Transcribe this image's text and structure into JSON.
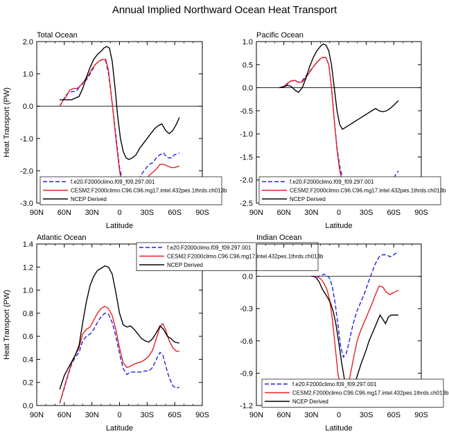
{
  "title": "Annual Implied Northward Ocean Heat Transport",
  "colors": {
    "model1": "#1f1fe6",
    "model2": "#e62020",
    "obs": "#000000"
  },
  "legend_labels": [
    "f.e20.F2000climo.f09_f09.297.001",
    "CESM2.F2000climo.C96.C96.mg17.intel.432pes.1thrds.ch013b",
    "NCEP Derived"
  ],
  "chart_data": [
    {
      "type": "line",
      "title": "Total Ocean",
      "xlabel": "Latitude",
      "ylabel": "Heat Transport (PW)",
      "xlim": [
        90,
        -90
      ],
      "ylim": [
        -3.0,
        2.0
      ],
      "xticks": [
        90,
        60,
        30,
        0,
        -30,
        -60,
        -90
      ],
      "xticklabels": [
        "90N",
        "60N",
        "30N",
        "0",
        "30S",
        "60S",
        "90S"
      ],
      "yticks": [
        -3.0,
        -2.0,
        -1.0,
        0.0,
        1.0,
        2.0
      ],
      "yticklabels": [
        "-3.0",
        "-2.0",
        "-1.0",
        "0.0",
        "1.0",
        "2.0"
      ],
      "zero_line": true,
      "legend_position": "bottom",
      "series": [
        {
          "name": "f.e20.F2000climo.f09_f09.297.001",
          "style": "dashed",
          "color": "model1",
          "x": [
            65,
            62,
            58,
            54,
            50,
            46,
            42,
            38,
            34,
            30,
            26,
            22,
            18,
            15,
            12,
            8,
            4,
            0,
            -4,
            -8,
            -12,
            -16,
            -20,
            -24,
            -28,
            -32,
            -36,
            -40,
            -44,
            -48,
            -52,
            -56,
            -60,
            -65
          ],
          "y": [
            0.0,
            0.15,
            0.35,
            0.45,
            0.45,
            0.5,
            0.65,
            0.75,
            0.9,
            1.1,
            1.3,
            1.4,
            1.45,
            1.4,
            1.0,
            0.1,
            -0.9,
            -1.9,
            -2.4,
            -2.6,
            -2.6,
            -2.5,
            -2.3,
            -2.1,
            -1.95,
            -1.8,
            -1.75,
            -1.6,
            -1.5,
            -1.45,
            -1.6,
            -1.6,
            -1.5,
            -1.45
          ]
        },
        {
          "name": "CESM2.F2000climo.C96.C96.mg17.intel.432pes.1thrds.ch013b",
          "style": "solid",
          "color": "model2",
          "x": [
            65,
            62,
            58,
            54,
            50,
            46,
            42,
            38,
            34,
            30,
            26,
            22,
            18,
            15,
            12,
            8,
            4,
            0,
            -4,
            -8,
            -12,
            -16,
            -20,
            -24,
            -28,
            -32,
            -36,
            -40,
            -44,
            -48,
            -52,
            -56,
            -60,
            -65
          ],
          "y": [
            0.0,
            0.15,
            0.3,
            0.5,
            0.55,
            0.55,
            0.65,
            0.8,
            0.95,
            1.15,
            1.3,
            1.4,
            1.45,
            1.45,
            1.1,
            0.1,
            -1.0,
            -2.0,
            -2.6,
            -2.9,
            -3.0,
            -2.9,
            -2.7,
            -2.5,
            -2.3,
            -2.15,
            -2.05,
            -1.95,
            -1.8,
            -1.8,
            -1.85,
            -1.9,
            -1.9,
            -1.85
          ]
        },
        {
          "name": "NCEP Derived",
          "style": "solid",
          "color": "obs",
          "x": [
            65,
            60,
            56,
            52,
            48,
            44,
            40,
            36,
            32,
            28,
            24,
            20,
            17,
            14,
            11,
            8,
            5,
            2,
            -1,
            -4,
            -7,
            -10,
            -14,
            -18,
            -22,
            -26,
            -30,
            -34,
            -38,
            -42,
            -46,
            -50,
            -54,
            -58,
            -62,
            -65
          ],
          "y": [
            0.2,
            0.2,
            0.2,
            0.2,
            0.25,
            0.3,
            0.55,
            0.9,
            1.2,
            1.45,
            1.6,
            1.7,
            1.8,
            1.85,
            1.8,
            1.4,
            0.6,
            -0.3,
            -1.0,
            -1.4,
            -1.6,
            -1.65,
            -1.6,
            -1.5,
            -1.3,
            -1.15,
            -1.0,
            -0.85,
            -0.7,
            -0.6,
            -0.55,
            -0.75,
            -0.85,
            -0.75,
            -0.55,
            -0.35
          ]
        }
      ]
    },
    {
      "type": "line",
      "title": "Pacific Ocean",
      "xlabel": "Latitude",
      "ylabel": "",
      "xlim": [
        90,
        -90
      ],
      "ylim": [
        -2.5,
        1.0
      ],
      "xticks": [
        90,
        60,
        30,
        0,
        -30,
        -60,
        -90
      ],
      "xticklabels": [
        "90N",
        "60N",
        "30N",
        "0",
        "30S",
        "60S",
        "90S"
      ],
      "yticks": [
        -2.5,
        -2.0,
        -1.5,
        -1.0,
        -0.5,
        0.0,
        0.5,
        1.0
      ],
      "yticklabels": [
        "-2.5",
        "-2.0",
        "-1.5",
        "-1.0",
        "-0.5",
        "0.0",
        "0.5",
        "1.0"
      ],
      "zero_line": true,
      "legend_position": "bottom",
      "series": [
        {
          "name": "f.e20.F2000climo.f09_f09.297.001",
          "style": "dashed",
          "color": "model1",
          "x": [
            65,
            60,
            56,
            52,
            48,
            44,
            40,
            36,
            32,
            28,
            24,
            20,
            17,
            14,
            11,
            8,
            5,
            2,
            -1,
            -4,
            -8,
            -12,
            -16,
            -20,
            -24,
            -28,
            -32,
            -36,
            -40,
            -44,
            -48,
            -52,
            -56,
            -60,
            -65
          ],
          "y": [
            0.0,
            0.02,
            0.08,
            0.15,
            0.15,
            0.12,
            0.15,
            0.25,
            0.35,
            0.45,
            0.55,
            0.63,
            0.66,
            0.65,
            0.5,
            0.0,
            -0.7,
            -1.3,
            -1.7,
            -1.95,
            -2.05,
            -2.1,
            -2.1,
            -2.05,
            -2.0,
            -2.05,
            -2.1,
            -2.05,
            -2.0,
            -2.05,
            -2.1,
            -2.05,
            -2.0,
            -1.95,
            -1.8
          ]
        },
        {
          "name": "CESM2.F2000climo.C96.C96.mg17.intel.432pes.1thrds.ch013b",
          "style": "solid",
          "color": "model2",
          "x": [
            65,
            60,
            56,
            52,
            48,
            44,
            40,
            36,
            32,
            28,
            24,
            20,
            17,
            14,
            11,
            8,
            5,
            2,
            -1,
            -4,
            -8,
            -12,
            -16,
            -20,
            -24,
            -28,
            -32,
            -36,
            -40,
            -44,
            -48,
            -52,
            -56,
            -60,
            -65
          ],
          "y": [
            0.0,
            0.03,
            0.1,
            0.15,
            0.16,
            0.12,
            0.12,
            0.22,
            0.33,
            0.45,
            0.55,
            0.63,
            0.66,
            0.65,
            0.5,
            0.0,
            -0.7,
            -1.35,
            -1.8,
            -2.05,
            -2.2,
            -2.25,
            -2.25,
            -2.2,
            -2.2,
            -2.25,
            -2.3,
            -2.35,
            -2.35,
            -2.4,
            -2.42,
            -2.35,
            -2.3,
            -2.25,
            -2.2
          ]
        },
        {
          "name": "NCEP Derived",
          "style": "solid",
          "color": "obs",
          "x": [
            65,
            60,
            56,
            52,
            48,
            44,
            40,
            36,
            32,
            28,
            24,
            20,
            17,
            14,
            11,
            8,
            5,
            2,
            -1,
            -4,
            -8,
            -12,
            -16,
            -20,
            -24,
            -28,
            -32,
            -36,
            -40,
            -44,
            -48,
            -52,
            -56,
            -60,
            -65
          ],
          "y": [
            0.0,
            0.02,
            0.05,
            0.03,
            -0.05,
            -0.1,
            0.0,
            0.2,
            0.45,
            0.65,
            0.8,
            0.9,
            0.95,
            0.92,
            0.8,
            0.5,
            0.0,
            -0.5,
            -0.8,
            -0.9,
            -0.85,
            -0.8,
            -0.75,
            -0.7,
            -0.65,
            -0.6,
            -0.55,
            -0.5,
            -0.45,
            -0.5,
            -0.52,
            -0.5,
            -0.45,
            -0.38,
            -0.28
          ]
        }
      ]
    },
    {
      "type": "line",
      "title": "Atlantic Ocean",
      "xlabel": "Latitude",
      "ylabel": "Heat Transport (PW)",
      "xlim": [
        90,
        -90
      ],
      "ylim": [
        0.0,
        1.4
      ],
      "xticks": [
        90,
        60,
        30,
        0,
        -30,
        -60,
        -90
      ],
      "xticklabels": [
        "90N",
        "60N",
        "30N",
        "0",
        "30S",
        "60S",
        "90S"
      ],
      "yticks": [
        0.0,
        0.2,
        0.4,
        0.6,
        0.8,
        1.0,
        1.2,
        1.4
      ],
      "yticklabels": [
        "0.0",
        "0.2",
        "0.4",
        "0.6",
        "0.8",
        "1.0",
        "1.2",
        "1.4"
      ],
      "zero_line": false,
      "legend_position": "top-right",
      "series": [
        {
          "name": "f.e20.F2000climo.f09_f09.297.001",
          "style": "dashed",
          "color": "model1",
          "x": [
            65,
            60,
            56,
            52,
            48,
            44,
            40,
            36,
            32,
            28,
            24,
            20,
            16,
            12,
            8,
            4,
            0,
            -4,
            -8,
            -12,
            -16,
            -20,
            -24,
            -28,
            -32,
            -36,
            -40,
            -44,
            -47,
            -50,
            -54,
            -58,
            -62,
            -65
          ],
          "y": [
            0.02,
            0.15,
            0.26,
            0.36,
            0.42,
            0.46,
            0.56,
            0.6,
            0.62,
            0.66,
            0.72,
            0.77,
            0.8,
            0.79,
            0.72,
            0.6,
            0.45,
            0.32,
            0.27,
            0.29,
            0.29,
            0.29,
            0.29,
            0.3,
            0.3,
            0.33,
            0.4,
            0.46,
            0.44,
            0.35,
            0.24,
            0.17,
            0.15,
            0.16
          ]
        },
        {
          "name": "CESM2.F2000climo.C96.C96.mg17.intel.432pes.1thrds.ch013b",
          "style": "solid",
          "color": "model2",
          "x": [
            65,
            60,
            56,
            52,
            48,
            44,
            40,
            36,
            32,
            28,
            24,
            20,
            16,
            12,
            8,
            4,
            0,
            -4,
            -8,
            -12,
            -16,
            -20,
            -24,
            -28,
            -32,
            -36,
            -40,
            -44,
            -47,
            -50,
            -54,
            -58,
            -62,
            -65
          ],
          "y": [
            0.02,
            0.16,
            0.27,
            0.37,
            0.44,
            0.5,
            0.62,
            0.66,
            0.68,
            0.74,
            0.8,
            0.84,
            0.86,
            0.84,
            0.78,
            0.66,
            0.5,
            0.37,
            0.33,
            0.34,
            0.36,
            0.37,
            0.38,
            0.4,
            0.43,
            0.48,
            0.58,
            0.68,
            0.71,
            0.66,
            0.56,
            0.5,
            0.47,
            0.47
          ]
        },
        {
          "name": "NCEP Derived",
          "style": "solid",
          "color": "obs",
          "x": [
            65,
            60,
            56,
            52,
            48,
            44,
            40,
            36,
            32,
            28,
            24,
            20,
            16,
            12,
            8,
            4,
            0,
            -4,
            -8,
            -12,
            -16,
            -20,
            -24,
            -28,
            -32,
            -36,
            -40,
            -44,
            -48,
            -52,
            -56,
            -60,
            -65
          ],
          "y": [
            0.14,
            0.26,
            0.32,
            0.38,
            0.44,
            0.52,
            0.72,
            0.9,
            1.04,
            1.12,
            1.17,
            1.19,
            1.21,
            1.2,
            1.14,
            0.98,
            0.8,
            0.7,
            0.68,
            0.69,
            0.66,
            0.62,
            0.58,
            0.56,
            0.55,
            0.58,
            0.63,
            0.69,
            0.66,
            0.6,
            0.58,
            0.55,
            0.54
          ]
        }
      ]
    },
    {
      "type": "line",
      "title": "Indian Ocean",
      "xlabel": "Latitude",
      "ylabel": "",
      "xlim": [
        90,
        -90
      ],
      "ylim": [
        -1.2,
        0.3
      ],
      "xticks": [
        90,
        60,
        30,
        0,
        -30,
        -60,
        -90
      ],
      "xticklabels": [
        "90N",
        "60N",
        "30N",
        "0",
        "30S",
        "60S",
        "90S"
      ],
      "yticks": [
        -1.2,
        -0.9,
        -0.6,
        -0.3,
        0.0
      ],
      "yticklabels": [
        "-1.2",
        "-0.9",
        "-0.6",
        "-0.3",
        "0.0"
      ],
      "zero_line": true,
      "legend_position": "bottom",
      "series": [
        {
          "name": "f.e20.F2000climo.f09_f09.297.001",
          "style": "dashed",
          "color": "model1",
          "x": [
            25,
            22,
            19,
            16,
            13,
            10,
            7,
            4,
            1,
            -2,
            -5,
            -8,
            -11,
            -14,
            -17,
            -20,
            -24,
            -28,
            -32,
            -36,
            -40,
            -44,
            -48,
            -52,
            -56,
            -60,
            -65
          ],
          "y": [
            0.0,
            0.0,
            0.01,
            0.02,
            0.01,
            -0.02,
            -0.1,
            -0.25,
            -0.45,
            -0.65,
            -0.75,
            -0.72,
            -0.62,
            -0.5,
            -0.4,
            -0.32,
            -0.24,
            -0.16,
            -0.06,
            0.03,
            0.12,
            0.18,
            0.2,
            0.2,
            0.18,
            0.2,
            0.23
          ]
        },
        {
          "name": "CESM2.F2000climo.C96.C96.mg17.intel.432pes.1thrds.ch013b",
          "style": "solid",
          "color": "model2",
          "x": [
            25,
            22,
            19,
            16,
            13,
            10,
            7,
            4,
            1,
            -2,
            -5,
            -8,
            -11,
            -14,
            -17,
            -20,
            -24,
            -28,
            -32,
            -36,
            -40,
            -44,
            -48,
            -52,
            -56,
            -60,
            -65
          ],
          "y": [
            0.0,
            -0.01,
            -0.03,
            -0.07,
            -0.12,
            -0.22,
            -0.4,
            -0.65,
            -0.9,
            -1.05,
            -1.12,
            -1.08,
            -0.98,
            -0.85,
            -0.72,
            -0.6,
            -0.5,
            -0.42,
            -0.34,
            -0.26,
            -0.17,
            -0.09,
            -0.1,
            -0.15,
            -0.17,
            -0.15,
            -0.13
          ]
        },
        {
          "name": "NCEP Derived",
          "style": "solid",
          "color": "obs",
          "x": [
            30,
            27,
            24,
            21,
            18,
            15,
            12,
            9,
            6,
            3,
            0,
            -3,
            -6,
            -9,
            -12,
            -15,
            -18,
            -21,
            -24,
            -27,
            -30,
            -33,
            -36,
            -39,
            -42,
            -45,
            -48,
            -51,
            -54,
            -57,
            -60,
            -65
          ],
          "y": [
            0.0,
            0.0,
            -0.02,
            -0.06,
            -0.12,
            -0.16,
            -0.2,
            -0.25,
            -0.33,
            -0.45,
            -0.62,
            -0.8,
            -0.95,
            -1.05,
            -1.08,
            -1.05,
            -0.98,
            -0.9,
            -0.82,
            -0.75,
            -0.68,
            -0.6,
            -0.54,
            -0.48,
            -0.42,
            -0.36,
            -0.4,
            -0.44,
            -0.38,
            -0.36,
            -0.36,
            -0.36
          ]
        }
      ]
    }
  ]
}
